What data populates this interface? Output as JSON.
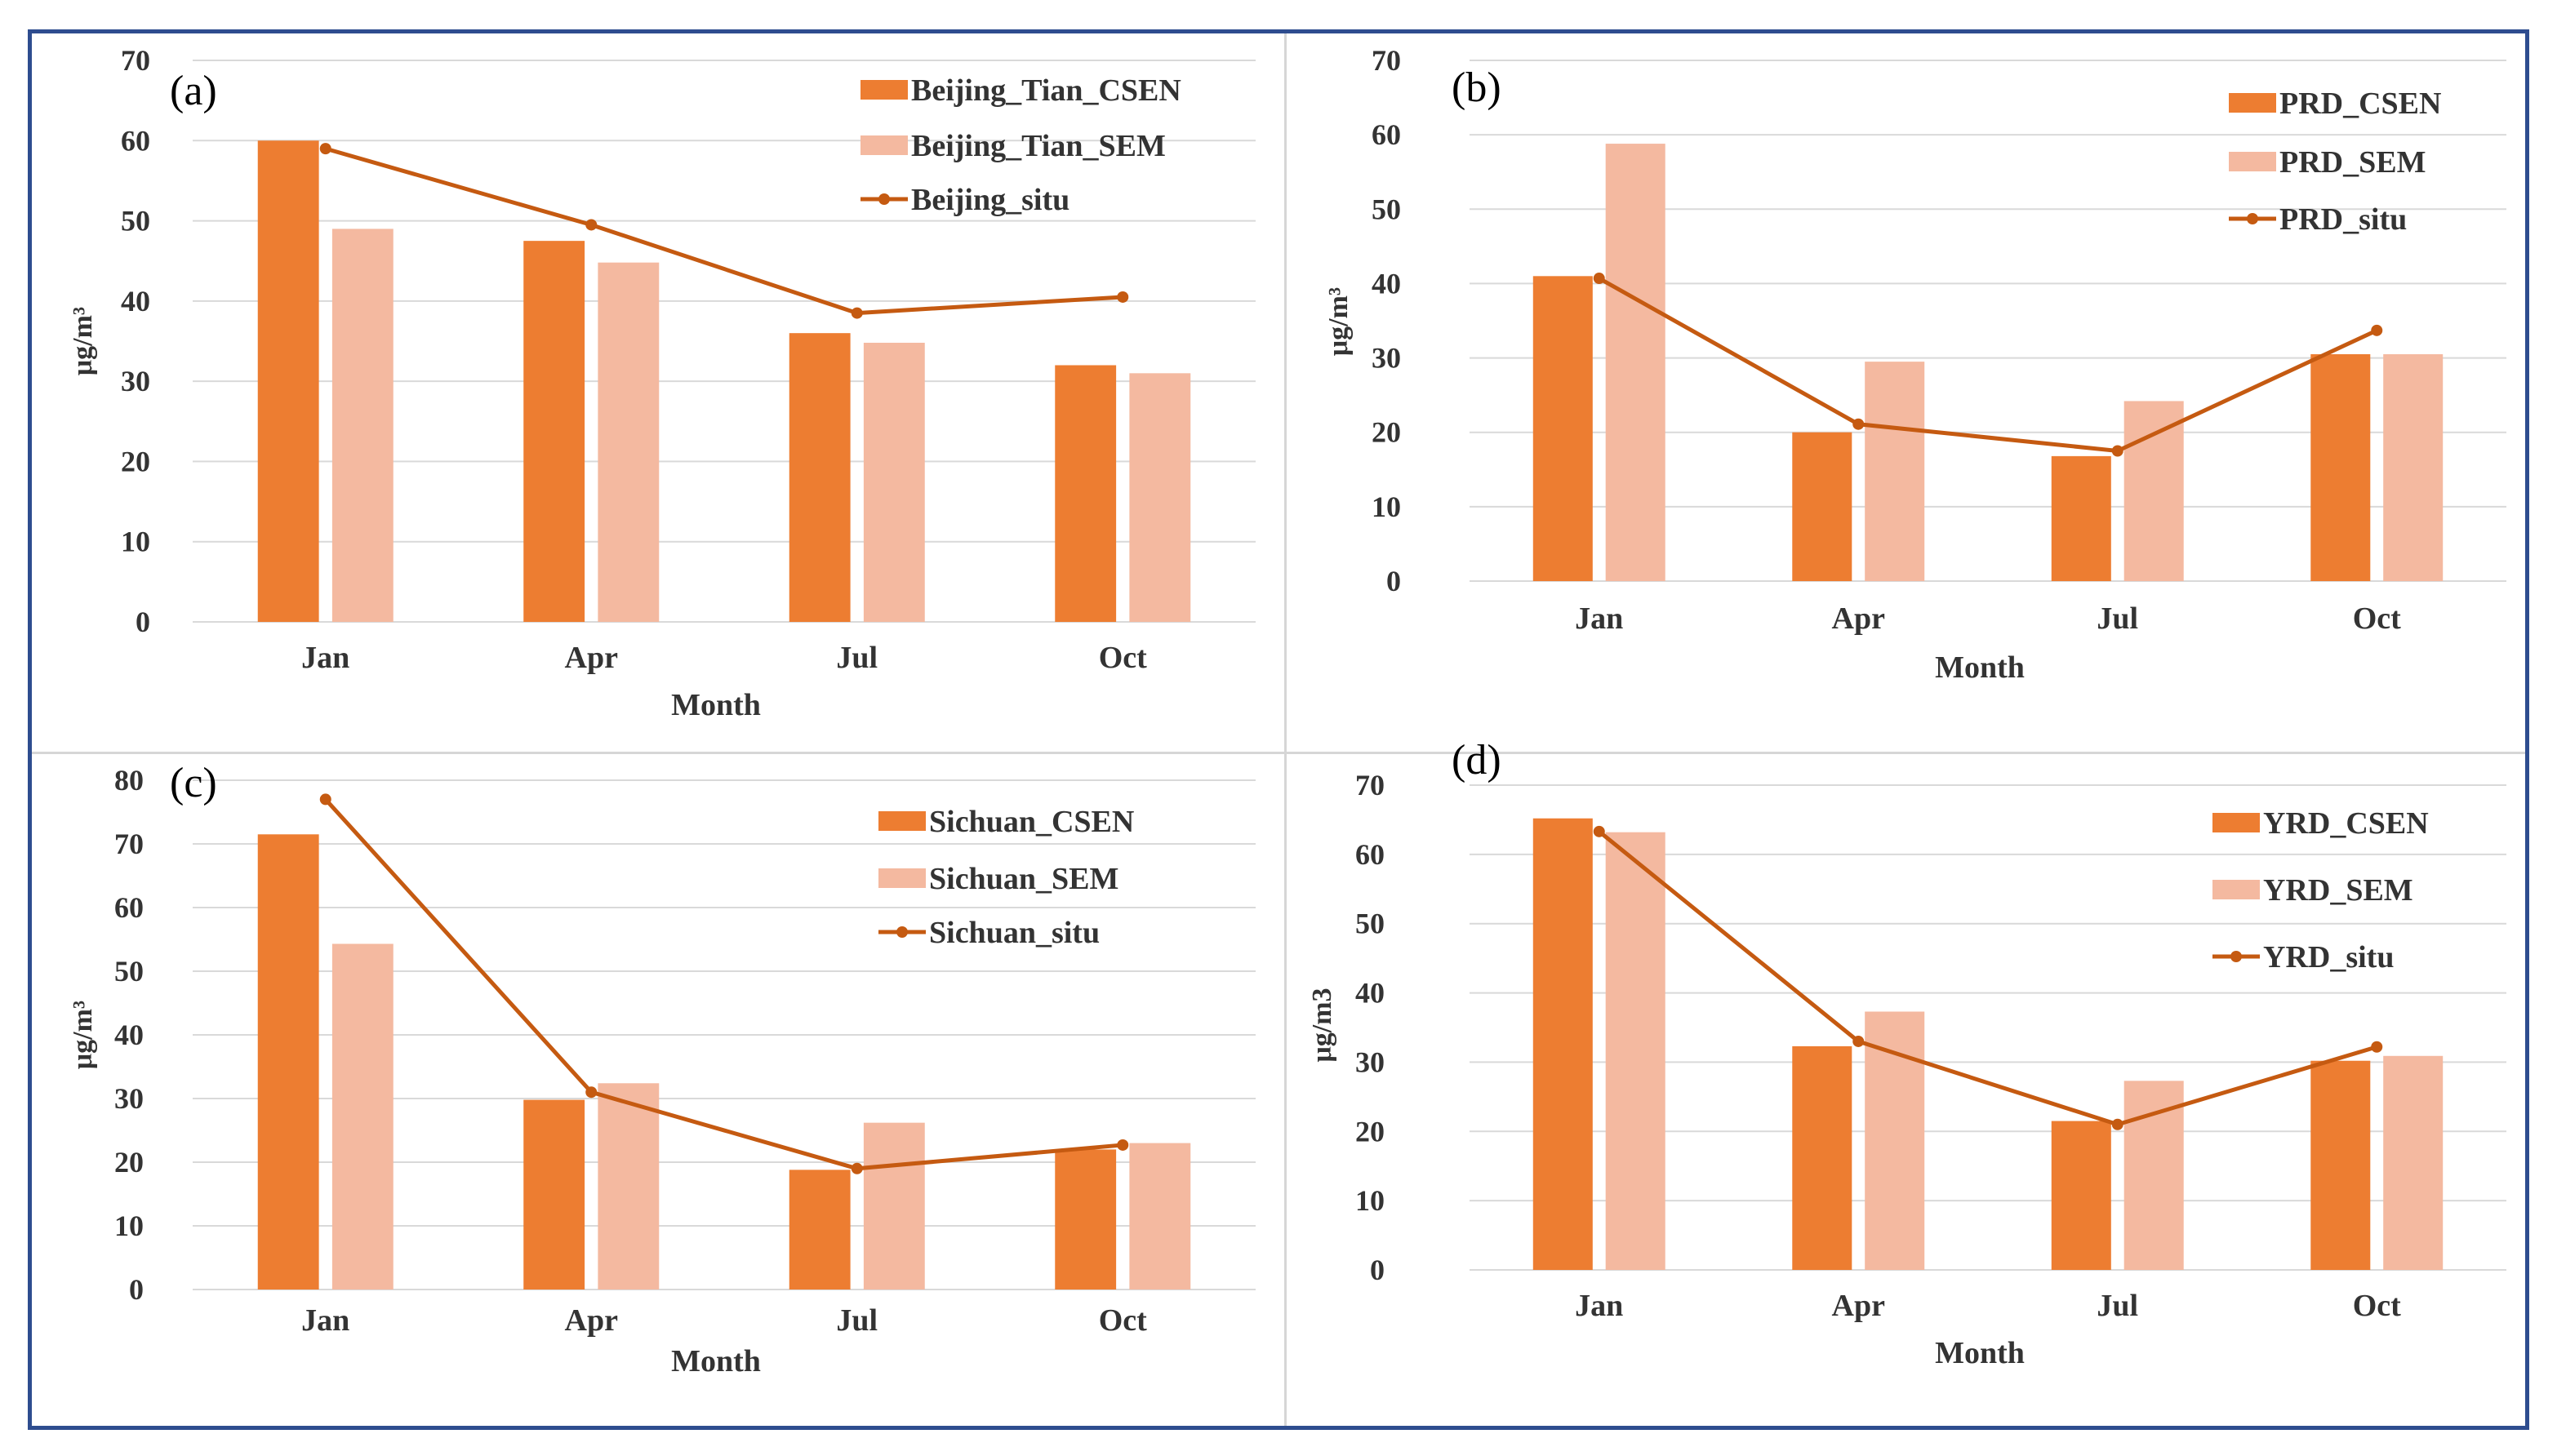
{
  "colors": {
    "csen": "#ED7D31",
    "sem": "#F4B9A0",
    "situ": "#C55A11",
    "grid": "#D9D9D9",
    "border": "#2E4D8F"
  },
  "chart_data": [
    {
      "type": "bar",
      "panel_label": "(a)",
      "categories": [
        "Jan",
        "Apr",
        "Jul",
        "Oct"
      ],
      "series": [
        {
          "name": "Beijing_Tian_CSEN",
          "kind": "bar",
          "values": [
            60,
            47.5,
            36,
            32
          ]
        },
        {
          "name": "Beijing_Tian_SEM",
          "kind": "bar",
          "values": [
            49,
            44.8,
            34.8,
            31
          ]
        },
        {
          "name": "Beijing_situ",
          "kind": "line",
          "values": [
            59,
            49.5,
            38.5,
            40.5
          ]
        }
      ],
      "xlabel": "Month",
      "ylabel": "μg/m³",
      "ylim": [
        0,
        70
      ],
      "yticks": [
        "0",
        "10",
        "20",
        "30",
        "40",
        "50",
        "60",
        "70"
      ],
      "legend_position": "top-right"
    },
    {
      "type": "bar",
      "panel_label": "(b)",
      "categories": [
        "Jan",
        "Apr",
        "Jul",
        "Oct"
      ],
      "series": [
        {
          "name": "PRD_CSEN",
          "kind": "bar",
          "values": [
            41,
            20,
            16.8,
            30.5
          ]
        },
        {
          "name": "PRD_SEM",
          "kind": "bar",
          "values": [
            58.8,
            29.5,
            24.2,
            30.5
          ]
        },
        {
          "name": "PRD_situ",
          "kind": "line",
          "values": [
            40.7,
            21.1,
            17.5,
            33.7
          ]
        }
      ],
      "xlabel": "Month",
      "ylabel": "μg/m³",
      "ylim": [
        0,
        70
      ],
      "yticks": [
        "0",
        "10",
        "20",
        "30",
        "40",
        "50",
        "60",
        "70"
      ],
      "legend_position": "top-right"
    },
    {
      "type": "bar",
      "panel_label": "(c)",
      "categories": [
        "Jan",
        "Apr",
        "Jul",
        "Oct"
      ],
      "series": [
        {
          "name": "Sichuan_CSEN",
          "kind": "bar",
          "values": [
            71.5,
            29.8,
            18.8,
            22
          ]
        },
        {
          "name": "Sichuan_SEM",
          "kind": "bar",
          "values": [
            54.3,
            32.4,
            26.2,
            23
          ]
        },
        {
          "name": "Sichuan_situ",
          "kind": "line",
          "values": [
            77,
            31,
            19,
            22.7
          ]
        }
      ],
      "xlabel": "Month",
      "ylabel": "μg/m³",
      "ylim": [
        0,
        80
      ],
      "yticks": [
        "0",
        "10",
        "20",
        "30",
        "40",
        "50",
        "60",
        "70",
        "80"
      ],
      "legend_position": "top-right"
    },
    {
      "type": "bar",
      "panel_label": "(d)",
      "categories": [
        "Jan",
        "Apr",
        "Jul",
        "Oct"
      ],
      "series": [
        {
          "name": "YRD_CSEN",
          "kind": "bar",
          "values": [
            65.2,
            32.3,
            21.5,
            30.2
          ]
        },
        {
          "name": "YRD_SEM",
          "kind": "bar",
          "values": [
            63.2,
            37.3,
            27.3,
            30.9
          ]
        },
        {
          "name": "YRD_situ",
          "kind": "line",
          "values": [
            63.3,
            33,
            21,
            32.2
          ]
        }
      ],
      "xlabel": "Month",
      "ylabel": "μg/m3",
      "ylim": [
        0,
        70
      ],
      "yticks": [
        "0",
        "10",
        "20",
        "30",
        "40",
        "50",
        "60",
        "70"
      ],
      "legend_position": "top-right"
    }
  ]
}
